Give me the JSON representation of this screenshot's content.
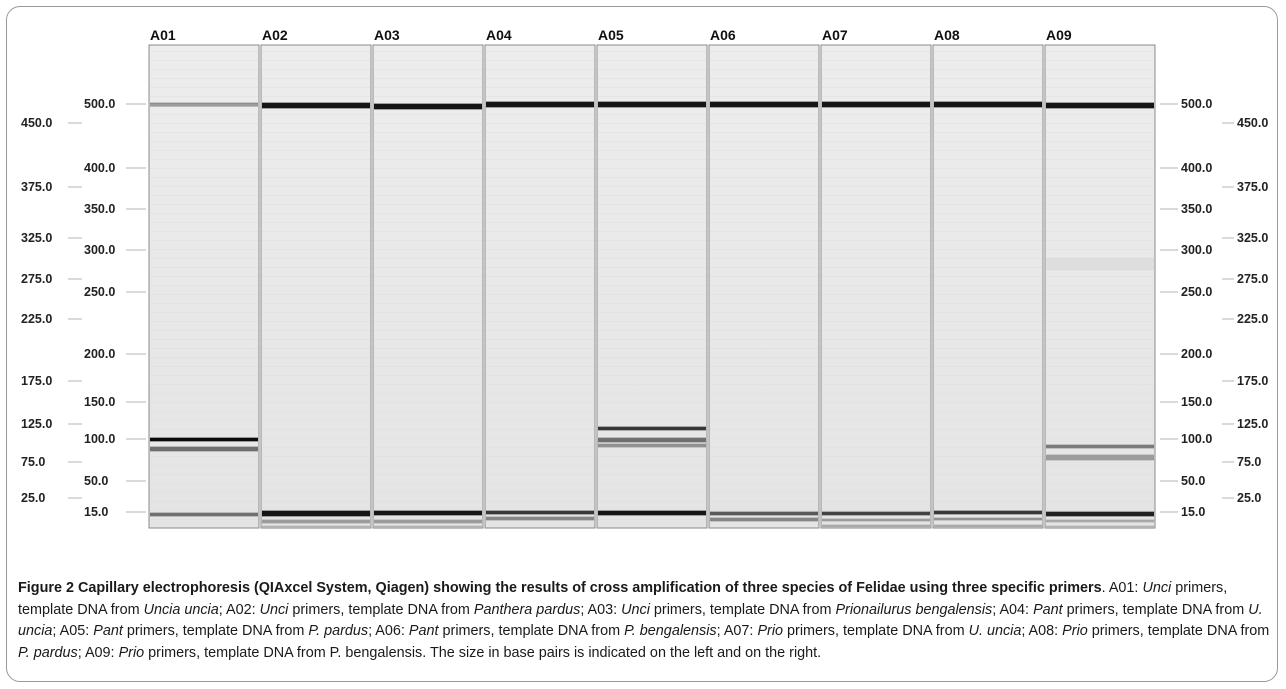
{
  "figure": {
    "lanes": [
      "A01",
      "A02",
      "A03",
      "A04",
      "A05",
      "A06",
      "A07",
      "A08",
      "A09"
    ],
    "left_markers_col1": [
      "500.0",
      "400.0",
      "350.0",
      "300.0",
      "250.0",
      "200.0",
      "150.0",
      "100.0",
      "50.0",
      "15.0"
    ],
    "left_markers_col2": [
      "450.0",
      "375.0",
      "325.0",
      "275.0",
      "225.0",
      "175.0",
      "125.0",
      "75.0",
      "25.0"
    ],
    "right_markers_col1": [
      "500.0",
      "400.0",
      "350.0",
      "300.0",
      "250.0",
      "200.0",
      "150.0",
      "100.0",
      "50.0",
      "15.0"
    ],
    "right_markers_col2": [
      "450.0",
      "375.0",
      "325.0",
      "275.0",
      "225.0",
      "175.0",
      "125.0",
      "75.0",
      "25.0"
    ]
  },
  "caption": {
    "label": "Figure 2",
    "title": "Capillary electrophoresis (QIAxcel System, Qiagen) showing the results of cross amplification of three species of Felidae using three specific primers",
    "segments": [
      {
        "t": ". A01: ",
        "s": "n"
      },
      {
        "t": "Unci",
        "s": "i"
      },
      {
        "t": " primers, template DNA from ",
        "s": "n"
      },
      {
        "t": "Uncia uncia",
        "s": "i"
      },
      {
        "t": "; A02: ",
        "s": "n"
      },
      {
        "t": "Unci",
        "s": "i"
      },
      {
        "t": " primers, template DNA from ",
        "s": "n"
      },
      {
        "t": "Panthera pardus",
        "s": "i"
      },
      {
        "t": "; A03: ",
        "s": "n"
      },
      {
        "t": "Unci",
        "s": "i"
      },
      {
        "t": " primers, template DNA from ",
        "s": "n"
      },
      {
        "t": "Prionailurus bengalensis",
        "s": "i"
      },
      {
        "t": "; A04: ",
        "s": "n"
      },
      {
        "t": "Pant",
        "s": "i"
      },
      {
        "t": " primers, template DNA from ",
        "s": "n"
      },
      {
        "t": "U. uncia",
        "s": "i"
      },
      {
        "t": "; A05: ",
        "s": "n"
      },
      {
        "t": "Pant",
        "s": "i"
      },
      {
        "t": " primers, template DNA from ",
        "s": "n"
      },
      {
        "t": "P. pardus",
        "s": "i"
      },
      {
        "t": "; A06: ",
        "s": "n"
      },
      {
        "t": "Pant",
        "s": "i"
      },
      {
        "t": " primers, template DNA from ",
        "s": "n"
      },
      {
        "t": "P. bengalensis",
        "s": "i"
      },
      {
        "t": "; A07: ",
        "s": "n"
      },
      {
        "t": "Prio",
        "s": "i"
      },
      {
        "t": " primers, template DNA from ",
        "s": "n"
      },
      {
        "t": "U. uncia",
        "s": "i"
      },
      {
        "t": "; A08: ",
        "s": "n"
      },
      {
        "t": "Prio",
        "s": "i"
      },
      {
        "t": " primers, template DNA from ",
        "s": "n"
      },
      {
        "t": "P. pardus",
        "s": "i"
      },
      {
        "t": "; A09: ",
        "s": "n"
      },
      {
        "t": "Prio",
        "s": "i"
      },
      {
        "t": " primers, template DNA from P. bengalensis. The size in base pairs is indicated on the left and on the right.",
        "s": "n"
      }
    ]
  }
}
